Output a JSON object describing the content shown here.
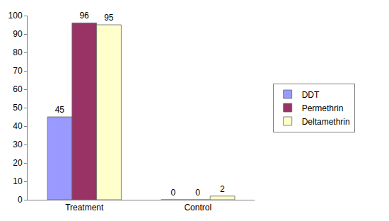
{
  "chart_data": {
    "type": "bar",
    "categories": [
      "Treatment",
      "Control"
    ],
    "series": [
      {
        "name": "DDT",
        "color": "#9999ff",
        "values": [
          45,
          0
        ]
      },
      {
        "name": "Permethrin",
        "color": "#993366",
        "values": [
          96,
          0
        ]
      },
      {
        "name": "Deltamethrin",
        "color": "#ffffcc",
        "values": [
          95,
          2
        ]
      }
    ],
    "ylim": [
      0,
      100
    ],
    "yticks": [
      0,
      10,
      20,
      30,
      40,
      50,
      60,
      70,
      80,
      90,
      100
    ],
    "grid": false,
    "legend": "right",
    "data_labels": true
  }
}
